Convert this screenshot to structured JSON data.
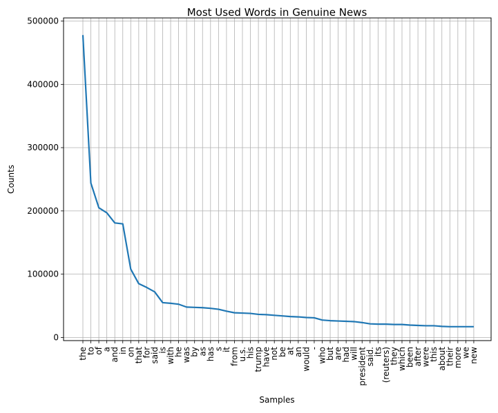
{
  "chart_data": {
    "type": "line",
    "title": "Most Used Words in Genuine News",
    "xlabel": "Samples",
    "ylabel": "Counts",
    "ylim": [
      -5000,
      505000
    ],
    "yticks": [
      0,
      100000,
      200000,
      300000,
      400000,
      500000
    ],
    "grid": true,
    "line_color": "#1f77b4",
    "categories": [
      "the",
      "to",
      "of",
      "a",
      "and",
      "in",
      "on",
      "that",
      "for",
      "said",
      "is",
      "with",
      "he",
      "was",
      "by",
      "as",
      "has",
      "s",
      "it",
      "from",
      "u.s.",
      "his",
      "trump",
      "have",
      "not",
      "be",
      "at",
      "an",
      "would",
      "-",
      "who",
      "but",
      "are",
      "had",
      "will",
      "president",
      "said.",
      "its",
      "(reuters)",
      "they",
      "which",
      "been",
      "after",
      "were",
      "this",
      "about",
      "their",
      "more",
      "we",
      "new"
    ],
    "values": [
      478000,
      244000,
      205000,
      197000,
      181000,
      179500,
      108000,
      85000,
      79000,
      72000,
      55000,
      54000,
      52500,
      48000,
      47500,
      47000,
      46000,
      44500,
      41500,
      39000,
      38500,
      38000,
      36500,
      36000,
      35000,
      34000,
      33000,
      32500,
      31500,
      31000,
      27500,
      26500,
      26000,
      25500,
      25000,
      23500,
      21500,
      21000,
      21000,
      20500,
      20500,
      19500,
      19000,
      18500,
      18500,
      17500,
      17000,
      17000,
      17000,
      17000
    ]
  }
}
